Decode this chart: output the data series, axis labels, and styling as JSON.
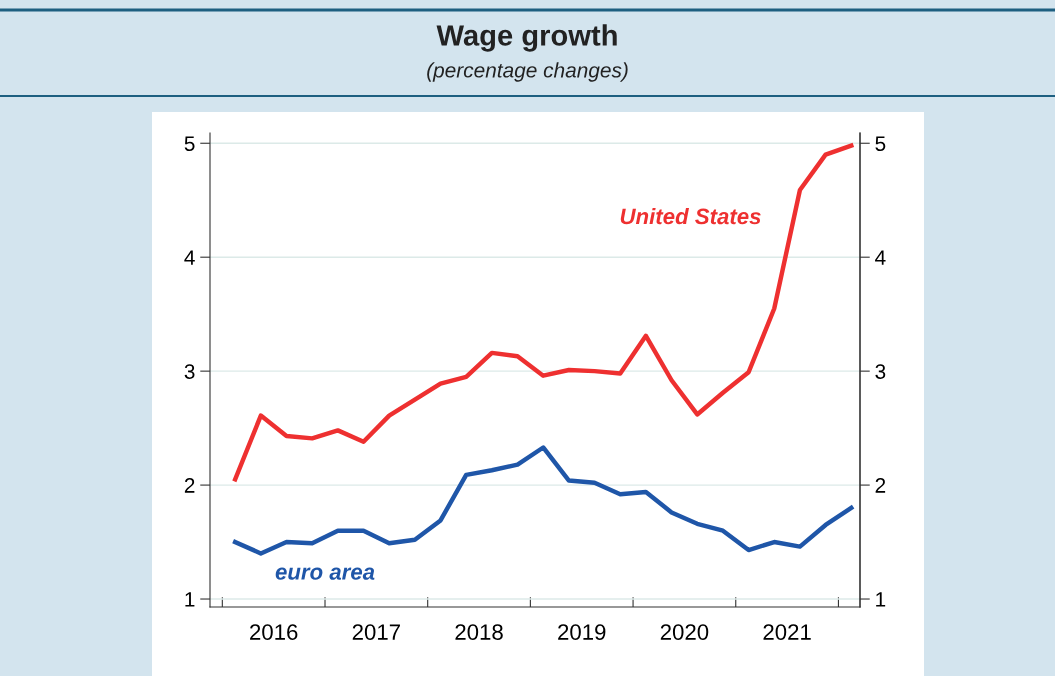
{
  "chart_data": {
    "type": "line",
    "title": "Wage growth",
    "subtitle": "(percentage changes)",
    "x": [
      2016.125,
      2016.375,
      2016.625,
      2016.875,
      2017.125,
      2017.375,
      2017.625,
      2017.875,
      2018.125,
      2018.375,
      2018.625,
      2018.875,
      2019.125,
      2019.375,
      2019.625,
      2019.875,
      2020.125,
      2020.375,
      2020.625,
      2020.875,
      2021.125,
      2021.375,
      2021.625,
      2021.875,
      2022.125
    ],
    "series": [
      {
        "name": "United States",
        "color": "#ee3030",
        "values": [
          2.05,
          2.61,
          2.43,
          2.41,
          2.48,
          2.38,
          2.61,
          2.75,
          2.89,
          2.95,
          3.16,
          3.13,
          2.96,
          3.01,
          3.0,
          2.98,
          3.31,
          2.92,
          2.62,
          2.81,
          2.99,
          3.55,
          4.59,
          4.9,
          4.98
        ]
      },
      {
        "name": "euro area",
        "color": "#1f56a8",
        "values": [
          1.5,
          1.4,
          1.5,
          1.49,
          1.6,
          1.6,
          1.49,
          1.52,
          1.69,
          2.09,
          2.13,
          2.18,
          2.33,
          2.04,
          2.02,
          1.92,
          1.94,
          1.76,
          1.66,
          1.6,
          1.43,
          1.5,
          1.46,
          1.65,
          1.8
        ]
      }
    ],
    "xlim": [
      2015.88,
      2022.21
    ],
    "xticks": [
      {
        "value": 2016,
        "label": null
      },
      {
        "value": 2016.5,
        "label": "2016"
      },
      {
        "value": 2017,
        "label": null
      },
      {
        "value": 2017.5,
        "label": "2017"
      },
      {
        "value": 2018,
        "label": null
      },
      {
        "value": 2018.5,
        "label": "2018"
      },
      {
        "value": 2019,
        "label": null
      },
      {
        "value": 2019.5,
        "label": "2019"
      },
      {
        "value": 2020,
        "label": null
      },
      {
        "value": 2020.5,
        "label": "2020"
      },
      {
        "value": 2021,
        "label": null
      },
      {
        "value": 2021.5,
        "label": "2021"
      },
      {
        "value": 2022,
        "label": null
      }
    ],
    "ylim": [
      0.93,
      5.09
    ],
    "yticks": [
      1,
      2,
      3,
      4,
      5
    ],
    "y2lim": [
      0.93,
      5.09
    ],
    "y2ticks": [
      1,
      2,
      3,
      4,
      5
    ],
    "grid": "y",
    "legend": false,
    "line_style": "solid",
    "marker": "none"
  }
}
